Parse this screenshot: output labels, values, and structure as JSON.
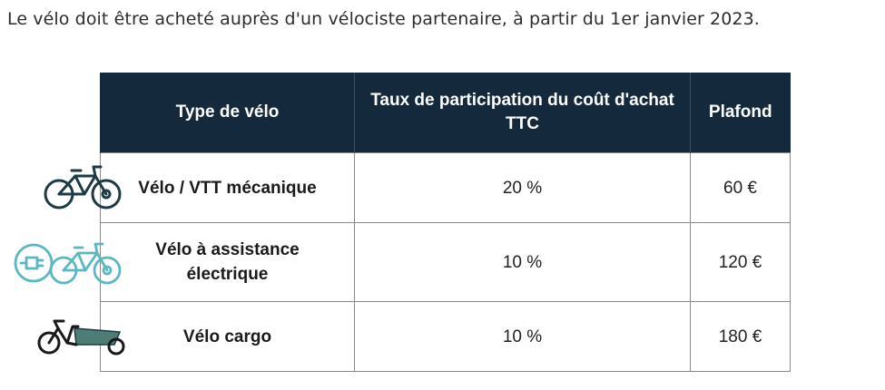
{
  "intro_text": "Le vélo doit être acheté auprès d'un vélociste partenaire, à partir du 1er janvier 2023.",
  "table": {
    "headers": {
      "type": "Type de vélo",
      "rate": "Taux de participation du coût d'achat TTC",
      "cap": "Plafond"
    },
    "rows": [
      {
        "type": "Vélo / VTT mécanique",
        "rate": "20 %",
        "cap": "60 €",
        "icon": "bicycle-icon"
      },
      {
        "type": "Vélo à assistance électrique",
        "rate": "10 %",
        "cap": "120 €",
        "icon": "electric-bicycle-icon"
      },
      {
        "type": "Vélo cargo",
        "rate": "10 %",
        "cap": "180 €",
        "icon": "cargo-bike-icon"
      }
    ]
  },
  "colors": {
    "header_background": "#14293b",
    "icon_dark": "#1d3b44",
    "icon_electric": "#5bb8c3",
    "icon_cargo_box": "#4d7d74"
  }
}
